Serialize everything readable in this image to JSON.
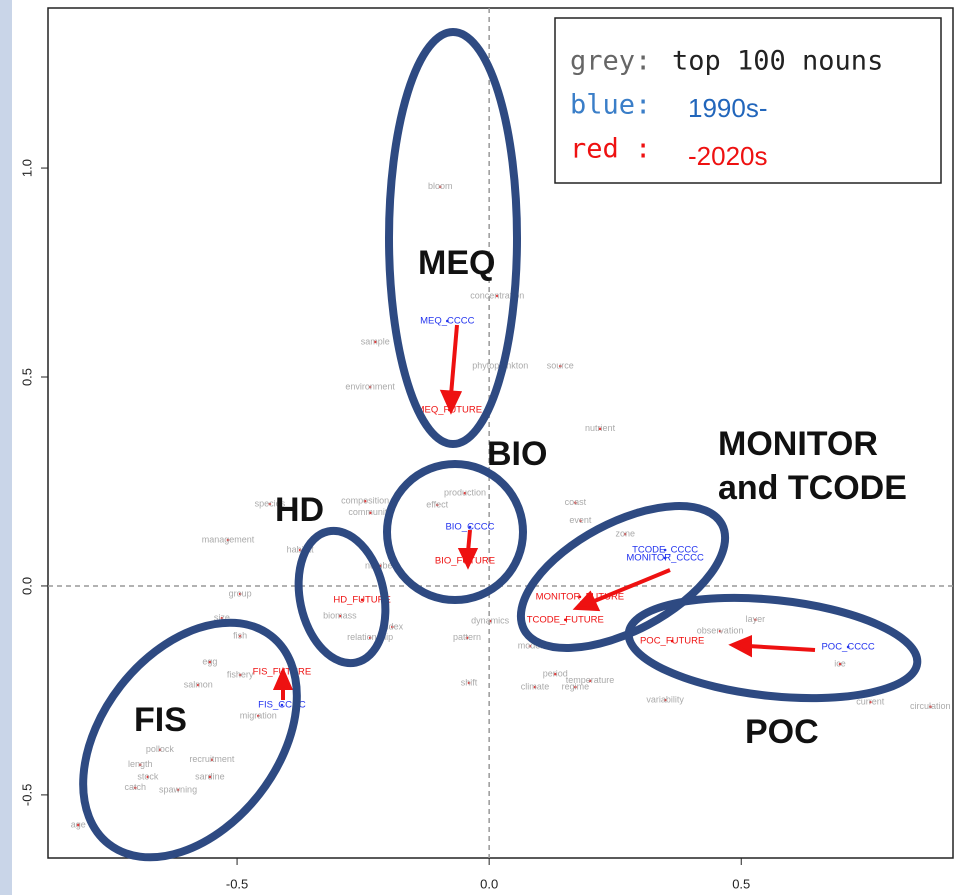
{
  "chart_data": {
    "type": "scatter",
    "xlim": [
      -0.875,
      0.92
    ],
    "ylim": [
      -0.651,
      1.383
    ],
    "xticks": [
      -0.5,
      {
        "value": 0,
        "label": "0.0"
      },
      0.5
    ],
    "yticks": [
      -0.5,
      {
        "value": 0,
        "label": "0.0"
      },
      0.5,
      {
        "value": 1,
        "label": "1.0"
      }
    ],
    "series": [
      {
        "color": "#aaaaaa",
        "labels": [
          "bloom",
          "concentration",
          "phytoplankton",
          "source",
          "environment",
          "sample",
          "nutrient",
          "production",
          "effect",
          "composition",
          "community",
          "coast",
          "event",
          "zone",
          "management",
          "habitat",
          "number",
          "species",
          "size",
          "fish",
          "group",
          "biomass",
          "index",
          "relationship",
          "pattern",
          "dynamics",
          "shift",
          "climate",
          "regime",
          "period",
          "temperature",
          "variability",
          "model",
          "observation",
          "layer",
          "ice",
          "current",
          "circulation",
          "egg",
          "salmon",
          "fishery",
          "migration",
          "recruitment",
          "pollock",
          "length",
          "stock",
          "sardine",
          "catch",
          "spawning",
          "age"
        ],
        "x": [
          -0.097,
          0.016,
          0.022,
          0.141,
          -0.236,
          -0.226,
          0.22,
          -0.048,
          -0.103,
          -0.246,
          -0.236,
          0.171,
          0.181,
          0.27,
          -0.518,
          -0.375,
          -0.216,
          -0.435,
          -0.53,
          -0.494,
          -0.494,
          -0.296,
          -0.192,
          -0.236,
          -0.044,
          0.002,
          -0.04,
          0.091,
          0.171,
          0.131,
          0.2,
          0.349,
          0.081,
          0.458,
          0.528,
          0.696,
          0.756,
          0.875,
          -0.554,
          -0.577,
          -0.494,
          -0.458,
          -0.55,
          -0.653,
          -0.692,
          -0.677,
          -0.554,
          -0.702,
          -0.617,
          -0.815
        ],
        "values": [
          0.955,
          0.694,
          0.526,
          0.526,
          0.476,
          0.584,
          0.376,
          0.222,
          0.194,
          0.203,
          0.175,
          0.199,
          0.156,
          0.124,
          0.11,
          0.086,
          0.048,
          0.196,
          -0.077,
          -0.12,
          -0.019,
          -0.072,
          -0.098,
          -0.124,
          -0.124,
          -0.084,
          -0.232,
          -0.242,
          -0.242,
          -0.211,
          -0.227,
          -0.273,
          -0.144,
          -0.108,
          -0.081,
          -0.187,
          -0.278,
          -0.289,
          -0.182,
          -0.237,
          -0.213,
          -0.311,
          -0.416,
          -0.392,
          -0.428,
          -0.457,
          -0.457,
          -0.483,
          -0.488,
          -0.572
        ]
      },
      {
        "color": "#2233ee",
        "labels": [
          "MEQ_CCCC",
          "BIO_CCCC",
          "TCODE_CCCC",
          "MONITOR_CCCC",
          "POC_CCCC",
          "FIS_CCCC"
        ],
        "x": [
          -0.083,
          -0.038,
          0.349,
          0.349,
          0.712,
          -0.411
        ],
        "values": [
          0.634,
          0.141,
          0.086,
          0.067,
          -0.146,
          -0.285
        ]
      },
      {
        "color": "#ee1111",
        "labels": [
          "MEQ_FUTURE",
          "BIO_FUTURE",
          "HD_FUTURE",
          "MONITOR_FUTURE",
          "TCODE_FUTURE",
          "POC_FUTURE",
          "FIS_FUTURE"
        ],
        "x": [
          -0.079,
          -0.048,
          -0.252,
          0.18,
          0.151,
          0.363,
          -0.411
        ],
        "values": [
          0.421,
          0.06,
          -0.033,
          -0.026,
          -0.081,
          -0.132,
          -0.206
        ]
      }
    ],
    "annotations": [
      "MEQ",
      "BIO",
      "HD",
      "MONITOR",
      "and TCODE",
      "FIS",
      "POC"
    ],
    "legend": [
      {
        "key": "grey:",
        "text": "top 100 nouns"
      },
      {
        "key": "blue:",
        "text": "1990s-"
      },
      {
        "key": "red :",
        "text": "-2020s"
      }
    ]
  }
}
